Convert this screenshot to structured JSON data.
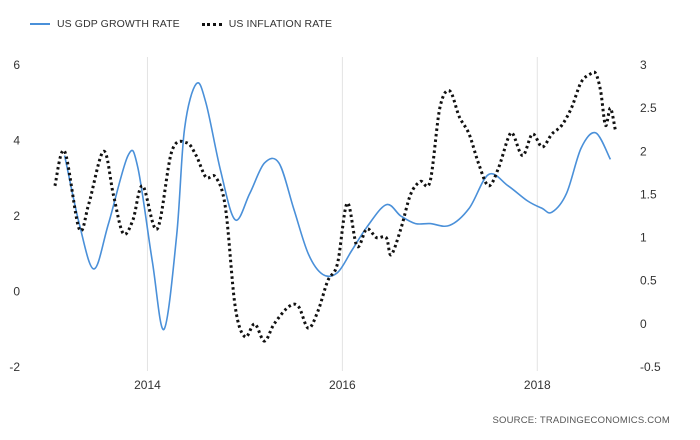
{
  "legend": {
    "series1": "US GDP GROWTH RATE",
    "series2": "US INFLATION RATE"
  },
  "source": "SOURCE:  TRADINGECONOMICS.COM",
  "colors": {
    "gdp": "#4a90d9",
    "inflation": "#111111",
    "grid": "#e3e3e3"
  },
  "chart_data": {
    "type": "line",
    "title": "",
    "x_ticks": [
      2014,
      2016,
      2018
    ],
    "xlim": [
      2013.0,
      2018.9
    ],
    "y_left": {
      "ticks": [
        -2,
        0,
        2,
        4,
        6
      ],
      "lim": [
        -2,
        6
      ]
    },
    "y_right": {
      "ticks": [
        -0.5,
        0,
        0.5,
        1,
        1.5,
        2,
        2.5,
        3
      ],
      "lim": [
        -0.5,
        3
      ]
    },
    "grid": "vertical",
    "series": [
      {
        "name": "US GDP GROWTH RATE",
        "axis": "left",
        "x": [
          2013.15,
          2013.3,
          2013.45,
          2013.6,
          2013.8,
          2013.9,
          2014.05,
          2014.17,
          2014.3,
          2014.38,
          2014.5,
          2014.6,
          2014.75,
          2014.9,
          2015.05,
          2015.2,
          2015.35,
          2015.5,
          2015.65,
          2015.8,
          2015.95,
          2016.1,
          2016.25,
          2016.45,
          2016.6,
          2016.75,
          2016.9,
          2017.1,
          2017.3,
          2017.5,
          2017.7,
          2017.9,
          2018.05,
          2018.15,
          2018.3,
          2018.45,
          2018.6,
          2018.75
        ],
        "y": [
          3.6,
          1.8,
          0.6,
          1.8,
          3.6,
          3.3,
          0.8,
          -1.0,
          1.5,
          4.3,
          5.5,
          5.0,
          3.2,
          1.9,
          2.6,
          3.4,
          3.4,
          2.2,
          1.0,
          0.45,
          0.5,
          1.1,
          1.7,
          2.3,
          2.0,
          1.8,
          1.8,
          1.75,
          2.2,
          3.1,
          2.8,
          2.4,
          2.2,
          2.1,
          2.6,
          3.8,
          4.2,
          3.5
        ]
      },
      {
        "name": "US INFLATION RATE",
        "axis": "right",
        "x": [
          2013.05,
          2013.15,
          2013.3,
          2013.4,
          2013.55,
          2013.65,
          2013.75,
          2013.85,
          2013.95,
          2014.1,
          2014.25,
          2014.4,
          2014.5,
          2014.6,
          2014.7,
          2014.8,
          2014.9,
          2015.0,
          2015.1,
          2015.2,
          2015.3,
          2015.45,
          2015.55,
          2015.65,
          2015.75,
          2015.85,
          2015.95,
          2016.05,
          2016.15,
          2016.25,
          2016.35,
          2016.45,
          2016.5,
          2016.6,
          2016.7,
          2016.8,
          2016.9,
          2017.0,
          2017.1,
          2017.2,
          2017.3,
          2017.4,
          2017.5,
          2017.6,
          2017.7,
          2017.75,
          2017.85,
          2017.95,
          2018.05,
          2018.15,
          2018.25,
          2018.35,
          2018.45,
          2018.55,
          2018.6,
          2018.65,
          2018.7,
          2018.75,
          2018.8
        ],
        "y": [
          1.6,
          2.0,
          1.1,
          1.4,
          2.0,
          1.5,
          1.05,
          1.2,
          1.6,
          1.1,
          2.0,
          2.1,
          1.95,
          1.7,
          1.7,
          1.35,
          0.2,
          -0.15,
          0.0,
          -0.2,
          0.0,
          0.2,
          0.2,
          -0.05,
          0.15,
          0.5,
          0.7,
          1.4,
          0.9,
          1.1,
          1.0,
          1.0,
          0.8,
          1.1,
          1.5,
          1.65,
          1.65,
          2.5,
          2.7,
          2.4,
          2.2,
          1.85,
          1.6,
          1.8,
          2.15,
          2.2,
          1.95,
          2.2,
          2.05,
          2.2,
          2.3,
          2.5,
          2.8,
          2.9,
          2.9,
          2.7,
          2.3,
          2.5,
          2.25
        ]
      }
    ]
  }
}
